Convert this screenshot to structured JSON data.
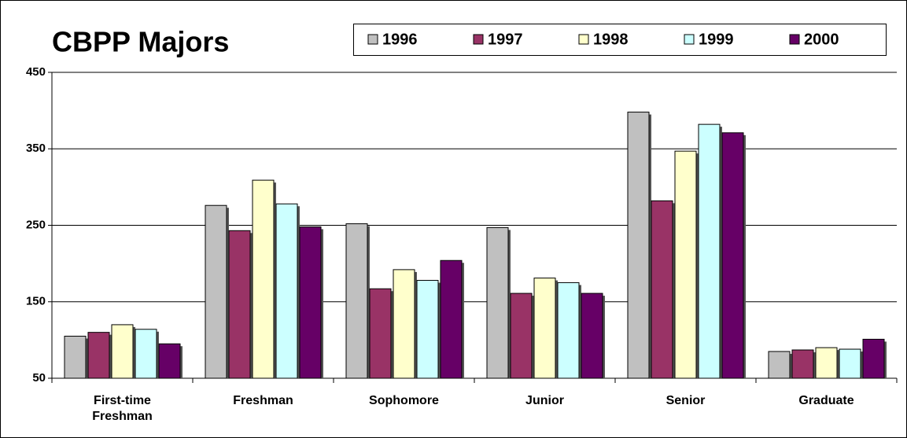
{
  "chart_data": {
    "type": "bar",
    "title": "CBPP Majors",
    "categories": [
      "First-time Freshman",
      "Freshman",
      "Sophomore",
      "Junior",
      "Senior",
      "Graduate"
    ],
    "series": [
      {
        "name": "1996",
        "color": "#c0c0c0",
        "values": [
          105,
          276,
          252,
          247,
          398,
          85
        ]
      },
      {
        "name": "1997",
        "color": "#993366",
        "values": [
          110,
          243,
          167,
          161,
          282,
          87
        ]
      },
      {
        "name": "1998",
        "color": "#ffffcc",
        "values": [
          120,
          309,
          192,
          181,
          347,
          90
        ]
      },
      {
        "name": "1999",
        "color": "#ccffff",
        "values": [
          114,
          278,
          178,
          175,
          382,
          88
        ]
      },
      {
        "name": "2000",
        "color": "#660066",
        "values": [
          95,
          248,
          204,
          161,
          371,
          101
        ]
      }
    ],
    "ylim": [
      50,
      450
    ],
    "yticks": [
      50,
      150,
      250,
      350,
      450
    ],
    "grid": true,
    "legend": "top"
  }
}
